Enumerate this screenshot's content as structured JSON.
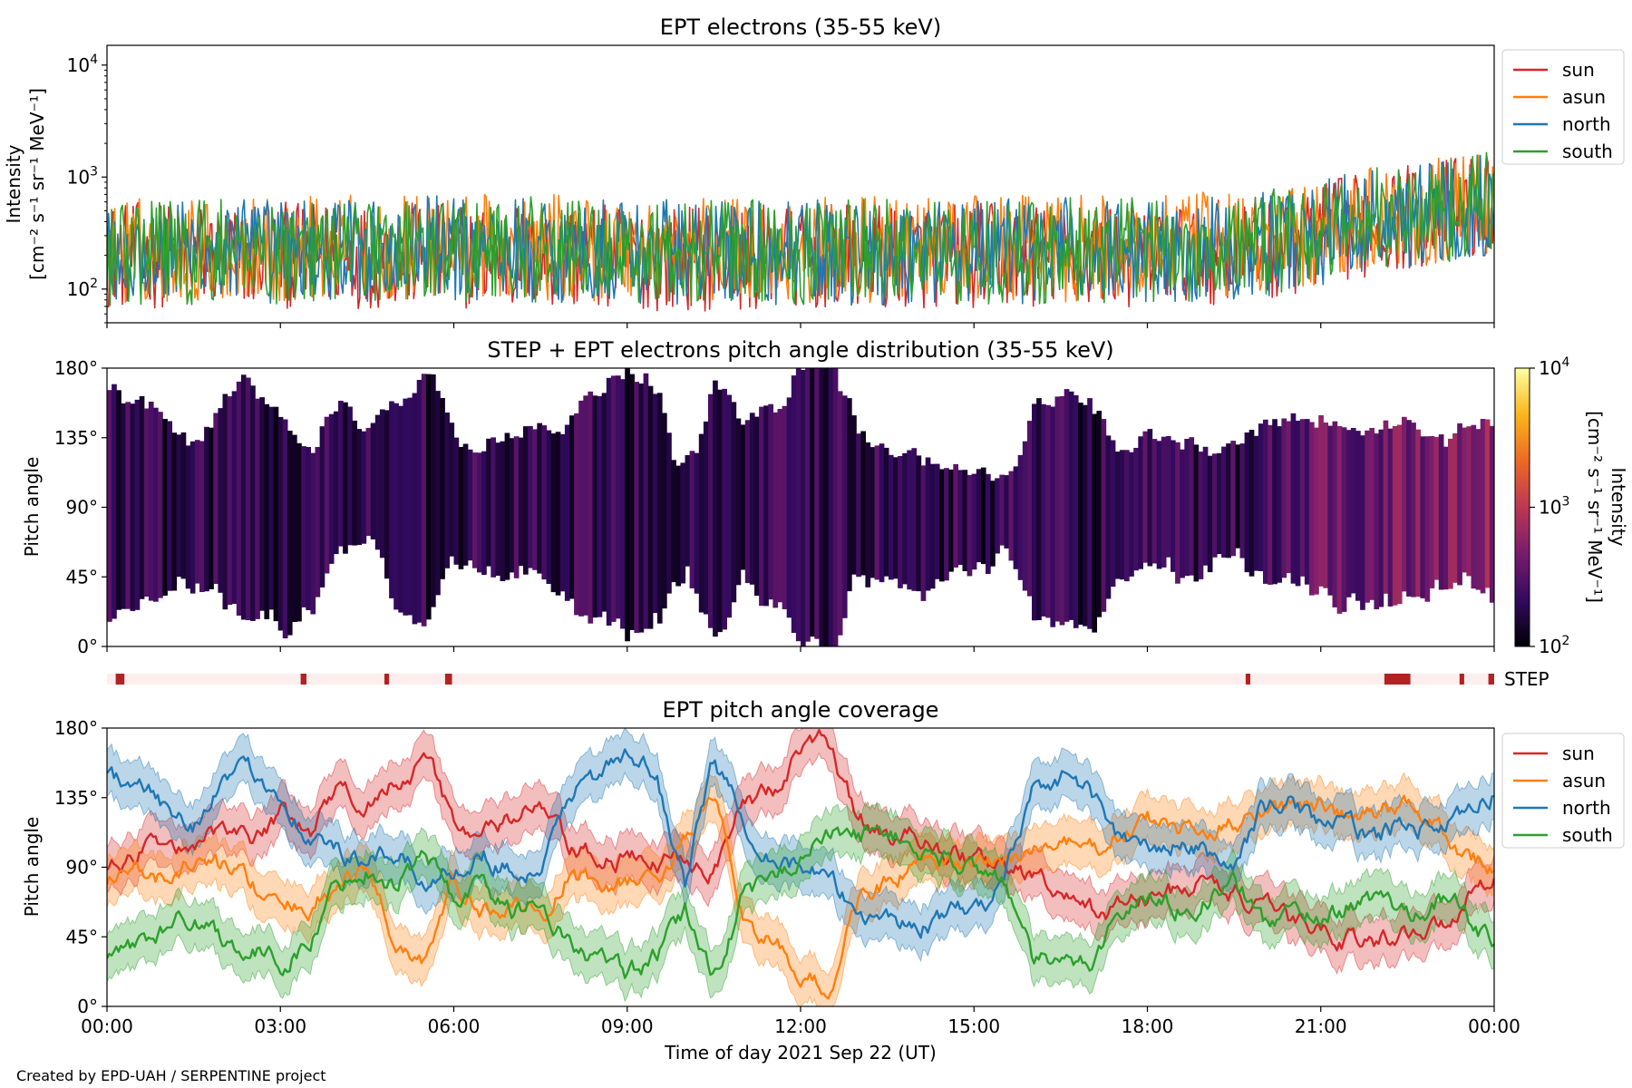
{
  "colors": {
    "sun": "#d62728",
    "asun": "#ff7f0e",
    "north": "#1f77b4",
    "south": "#2ca02c",
    "step_marker": "#b22222",
    "step_background": "#fdeeee",
    "colormap": [
      "#000004",
      "#320a5e",
      "#781c6d",
      "#bc3754",
      "#ed6925",
      "#fbb61a",
      "#fcffa4"
    ]
  },
  "footer": {
    "credit": "Created by EPD-UAH / SERPENTINE project"
  },
  "x_axis": {
    "label": "Time of day 2021 Sep 22 (UT)",
    "range_hours": [
      0,
      24
    ],
    "ticks": [
      {
        "hour": 0,
        "label": "00:00"
      },
      {
        "hour": 3,
        "label": "03:00"
      },
      {
        "hour": 6,
        "label": "06:00"
      },
      {
        "hour": 9,
        "label": "09:00"
      },
      {
        "hour": 12,
        "label": "12:00"
      },
      {
        "hour": 15,
        "label": "15:00"
      },
      {
        "hour": 18,
        "label": "18:00"
      },
      {
        "hour": 21,
        "label": "21:00"
      },
      {
        "hour": 24,
        "label": "00:00"
      }
    ]
  },
  "chart_data": [
    {
      "type": "line",
      "title": "EPT electrons (35-55 keV)",
      "ylabel_line1": "Intensity",
      "ylabel_line2": "[cm⁻² s⁻¹ sr⁻¹ MeV⁻¹]",
      "yscale": "log",
      "ylim": [
        50,
        15000
      ],
      "yticks": [
        {
          "value": 100,
          "base": "10",
          "exp": "2"
        },
        {
          "value": 1000,
          "base": "10",
          "exp": "3"
        },
        {
          "value": 10000,
          "base": "10",
          "exp": "4"
        }
      ],
      "legend_position": "right",
      "series": [
        {
          "name": "sun",
          "x_hours": [
            0,
            3,
            6,
            9,
            12,
            15,
            18,
            20,
            21,
            22,
            23,
            24
          ],
          "y": [
            200,
            200,
            200,
            190,
            190,
            200,
            200,
            230,
            300,
            400,
            480,
            600
          ]
        },
        {
          "name": "asun",
          "x_hours": [
            0,
            3,
            6,
            9,
            12,
            15,
            18,
            20,
            21,
            22,
            23,
            24
          ],
          "y": [
            220,
            230,
            240,
            230,
            220,
            230,
            230,
            260,
            330,
            430,
            500,
            620
          ]
        },
        {
          "name": "north",
          "x_hours": [
            0,
            3,
            6,
            9,
            12,
            15,
            18,
            20,
            21,
            22,
            23,
            24
          ],
          "y": [
            210,
            220,
            230,
            220,
            210,
            220,
            220,
            250,
            320,
            420,
            500,
            600
          ]
        },
        {
          "name": "south",
          "x_hours": [
            0,
            3,
            6,
            9,
            12,
            15,
            18,
            20,
            21,
            22,
            23,
            24
          ],
          "y": [
            210,
            220,
            230,
            220,
            210,
            220,
            220,
            250,
            320,
            420,
            500,
            610
          ]
        }
      ]
    },
    {
      "type": "heatmap",
      "title": "STEP + EPT electrons pitch angle distribution (35-55 keV)",
      "ylabel": "Pitch angle",
      "ylim": [
        0,
        180
      ],
      "yticks": [
        {
          "value": 0,
          "label": "0°"
        },
        {
          "value": 45,
          "label": "45°"
        },
        {
          "value": 90,
          "label": "90°"
        },
        {
          "value": 135,
          "label": "135°"
        },
        {
          "value": 180,
          "label": "180°"
        }
      ],
      "colorbar": {
        "label_line1": "Intensity",
        "label_line2": "[cm⁻² s⁻¹ sr⁻¹ MeV⁻¹]",
        "range": [
          100,
          10000
        ],
        "scale": "log",
        "ticks": [
          {
            "value": 100,
            "base": "10",
            "exp": "2"
          },
          {
            "value": 1000,
            "base": "10",
            "exp": "3"
          },
          {
            "value": 10000,
            "base": "10",
            "exp": "4"
          }
        ]
      },
      "typical_intensity": [
        {
          "hour": 0,
          "value": 200
        },
        {
          "hour": 19.7,
          "value": 200
        },
        {
          "hour": 21,
          "value": 350
        },
        {
          "hour": 24,
          "value": 600
        }
      ],
      "coverage_source": "EPT pitch angle coverage (sun, asun, north, south bands)"
    },
    {
      "type": "bar",
      "label": "STEP",
      "description_source": "short availability marks",
      "marks_hours": [
        {
          "start": 0.15,
          "end": 0.3
        },
        {
          "start": 3.35,
          "end": 3.45
        },
        {
          "start": 4.8,
          "end": 4.88
        },
        {
          "start": 5.85,
          "end": 5.97
        },
        {
          "start": 19.7,
          "end": 19.78
        },
        {
          "start": 22.1,
          "end": 22.55
        },
        {
          "start": 23.4,
          "end": 23.48
        },
        {
          "start": 23.9,
          "end": 24.0
        }
      ]
    },
    {
      "type": "line",
      "title": "EPT pitch angle coverage",
      "ylabel": "Pitch angle",
      "ylim": [
        0,
        180
      ],
      "yticks": [
        {
          "value": 0,
          "label": "0°"
        },
        {
          "value": 45,
          "label": "45°"
        },
        {
          "value": 90,
          "label": "90°"
        },
        {
          "value": 135,
          "label": "135°"
        },
        {
          "value": 180,
          "label": "180°"
        }
      ],
      "band_halfwidth_deg": 15,
      "legend_position": "right",
      "series": [
        {
          "name": "sun",
          "x_hours": [
            0,
            0.5,
            1,
            1.5,
            2,
            2.5,
            3,
            3.5,
            4,
            4.5,
            5,
            5.5,
            6,
            6.5,
            7,
            7.5,
            8,
            8.5,
            9,
            9.5,
            10,
            10.5,
            11,
            11.5,
            12,
            12.5,
            13,
            13.5,
            14,
            14.5,
            15,
            15.5,
            16,
            16.5,
            17,
            17.5,
            18,
            18.5,
            19,
            19.5,
            20,
            20.5,
            21,
            21.5,
            22,
            22.5,
            23,
            23.5,
            24
          ],
          "y": [
            90,
            95,
            110,
            95,
            120,
            110,
            125,
            110,
            140,
            130,
            150,
            160,
            120,
            110,
            120,
            130,
            100,
            95,
            95,
            90,
            100,
            90,
            130,
            140,
            165,
            170,
            120,
            110,
            110,
            100,
            95,
            90,
            85,
            70,
            60,
            65,
            70,
            75,
            80,
            75,
            60,
            55,
            50,
            45,
            40,
            50,
            50,
            70,
            90
          ]
        },
        {
          "name": "asun",
          "x_hours": [
            0,
            0.5,
            1,
            1.5,
            2,
            2.5,
            3,
            3.5,
            4,
            4.5,
            5,
            5.5,
            6,
            6.5,
            7,
            7.5,
            8,
            8.5,
            9,
            9.5,
            10,
            10.5,
            11,
            11.5,
            12,
            12.5,
            13,
            13.5,
            14,
            14.5,
            15,
            15.5,
            16,
            16.5,
            17,
            17.5,
            18,
            18.5,
            19,
            19.5,
            20,
            20.5,
            21,
            21.5,
            22,
            22.5,
            23,
            23.5,
            24
          ],
          "y": [
            80,
            90,
            80,
            95,
            90,
            80,
            60,
            65,
            80,
            90,
            40,
            30,
            80,
            60,
            70,
            50,
            85,
            80,
            80,
            80,
            110,
            130,
            60,
            40,
            20,
            10,
            70,
            80,
            90,
            90,
            90,
            95,
            100,
            105,
            100,
            110,
            120,
            115,
            110,
            120,
            130,
            130,
            130,
            120,
            125,
            130,
            120,
            100,
            90
          ]
        },
        {
          "name": "north",
          "x_hours": [
            0,
            0.5,
            1,
            1.5,
            2,
            2.5,
            3,
            3.5,
            4,
            4.5,
            5,
            5.5,
            6,
            6.5,
            7,
            7.5,
            8,
            8.5,
            9,
            9.5,
            10,
            10.5,
            11,
            11.5,
            12,
            12.5,
            13,
            13.5,
            14,
            14.5,
            15,
            15.5,
            16,
            16.5,
            17,
            17.5,
            18,
            18.5,
            19,
            19.5,
            20,
            20.5,
            21,
            21.5,
            22,
            22.5,
            23,
            23.5,
            24
          ],
          "y": [
            150,
            140,
            130,
            120,
            145,
            150,
            140,
            110,
            100,
            90,
            100,
            80,
            90,
            100,
            90,
            80,
            140,
            150,
            160,
            150,
            80,
            160,
            120,
            100,
            90,
            80,
            60,
            60,
            50,
            60,
            60,
            80,
            140,
            150,
            140,
            110,
            100,
            105,
            100,
            90,
            130,
            130,
            120,
            115,
            110,
            120,
            115,
            120,
            140
          ]
        },
        {
          "name": "south",
          "x_hours": [
            0,
            0.5,
            1,
            1.5,
            2,
            2.5,
            3,
            3.5,
            4,
            4.5,
            5,
            5.5,
            6,
            6.5,
            7,
            7.5,
            8,
            8.5,
            9,
            9.5,
            10,
            10.5,
            11,
            11.5,
            12,
            12.5,
            13,
            13.5,
            14,
            14.5,
            15,
            15.5,
            16,
            16.5,
            17,
            17.5,
            18,
            18.5,
            19,
            19.5,
            20,
            20.5,
            21,
            21.5,
            22,
            22.5,
            23,
            23.5,
            24
          ],
          "y": [
            30,
            40,
            50,
            60,
            45,
            35,
            30,
            40,
            80,
            90,
            80,
            100,
            70,
            80,
            60,
            70,
            40,
            30,
            20,
            30,
            60,
            20,
            70,
            80,
            100,
            110,
            110,
            115,
            100,
            95,
            90,
            85,
            30,
            25,
            30,
            60,
            70,
            65,
            70,
            80,
            55,
            60,
            60,
            65,
            70,
            60,
            70,
            60,
            40
          ]
        }
      ]
    }
  ]
}
